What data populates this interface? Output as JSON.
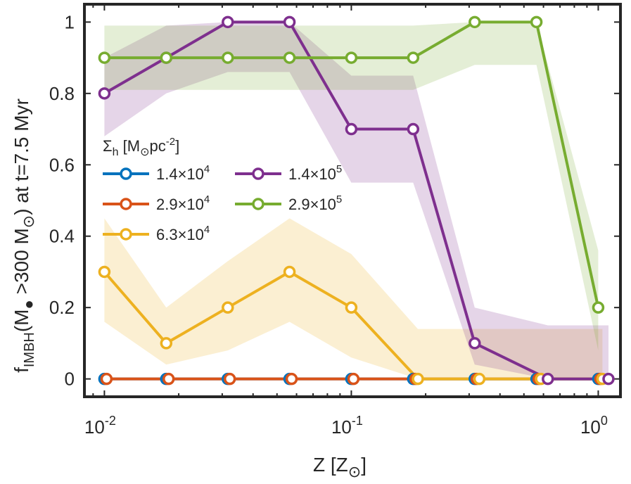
{
  "chart_data": {
    "type": "line",
    "xscale": "log",
    "xlim": [
      0.0083,
      1.23
    ],
    "ylim": [
      -0.05,
      1.05
    ],
    "ylabel": "f_IMBH(M● >300 M⊙) at t=7.5 Myr",
    "xlabel": "Z [Z⊙]",
    "xtick_labels": [
      {
        "value": 0.01,
        "base": "10",
        "exp": "-2"
      },
      {
        "value": 0.1,
        "base": "10",
        "exp": "-1"
      },
      {
        "value": 1,
        "base": "10",
        "exp": "0"
      }
    ],
    "ytick_labels": [
      {
        "value": 0,
        "label": "0"
      },
      {
        "value": 0.2,
        "label": "0.2"
      },
      {
        "value": 0.4,
        "label": "0.4"
      },
      {
        "value": 0.6,
        "label": "0.6"
      },
      {
        "value": 0.8,
        "label": "0.8"
      },
      {
        "value": 1,
        "label": "1"
      }
    ],
    "legend": {
      "title": "Σh [M⊙pc-2]",
      "title_parts": {
        "sigma": "Σ",
        "sub_h": "h",
        "open": " [M",
        "sun": "⊙",
        "pc": "pc",
        "sup": "-2",
        "close": "]"
      },
      "position": "center-left"
    },
    "series": [
      {
        "name": "1.4×10^4",
        "label_base": "1.4×10",
        "label_exp": "4",
        "color": "#0072BD",
        "x": [
          0.01,
          0.0178,
          0.0316,
          0.0562,
          0.1,
          0.178,
          0.316,
          0.562,
          1.0
        ],
        "y": [
          0,
          0,
          0,
          0,
          0,
          0,
          0,
          0,
          0
        ]
      },
      {
        "name": "2.9×10^4",
        "label_base": "2.9×10",
        "label_exp": "4",
        "color": "#D95319",
        "x": [
          0.0102,
          0.0182,
          0.0322,
          0.0573,
          0.102,
          0.182,
          0.322,
          0.573,
          1.02
        ],
        "y": [
          0,
          0,
          0,
          0,
          0,
          0,
          0,
          0,
          0
        ]
      },
      {
        "name": "6.3×10^4",
        "label_base": "6.3×10",
        "label_exp": "4",
        "color": "#EDB120",
        "fill": "#FBEBD1",
        "x": [
          0.01,
          0.0178,
          0.0316,
          0.0562,
          0.1,
          0.186,
          0.33,
          0.586,
          1.04
        ],
        "y": [
          0.3,
          0.1,
          0.2,
          0.3,
          0.2,
          0,
          0,
          0,
          0
        ],
        "lower": [
          0.16,
          0.04,
          0.08,
          0.16,
          0.06,
          0,
          0,
          0,
          0
        ],
        "upper": [
          0.45,
          0.2,
          0.33,
          0.45,
          0.35,
          0.14,
          0.14,
          0.14,
          0.14
        ]
      },
      {
        "name": "1.4×10^5",
        "label_base": "1.4×10",
        "label_exp": "5",
        "color": "#7E2F8E",
        "fill": "#E6DAE8",
        "x": [
          0.01,
          0.0178,
          0.0316,
          0.0562,
          0.1,
          0.178,
          0.316,
          0.625,
          1.1
        ],
        "y": [
          0.8,
          0.9,
          1,
          1,
          0.7,
          0.7,
          0.1,
          0,
          0
        ],
        "lower": [
          0.68,
          0.8,
          0.86,
          0.86,
          0.55,
          0.55,
          0.04,
          0,
          0
        ],
        "upper": [
          0.9,
          0.99,
          1,
          1,
          0.85,
          0.85,
          0.2,
          0.15,
          0.15
        ]
      },
      {
        "name": "2.9×10^5",
        "label_base": "2.9×10",
        "label_exp": "5",
        "color": "#77AC30",
        "fill": "#E4EFD9",
        "x": [
          0.01,
          0.0178,
          0.0316,
          0.0562,
          0.1,
          0.178,
          0.316,
          0.562,
          1.0
        ],
        "y": [
          0.9,
          0.9,
          0.9,
          0.9,
          0.9,
          0.9,
          1,
          1,
          0.2
        ],
        "lower": [
          0.81,
          0.81,
          0.81,
          0.81,
          0.81,
          0.81,
          0.88,
          0.88,
          0.08
        ],
        "upper": [
          0.99,
          0.99,
          0.99,
          0.99,
          0.99,
          0.99,
          1,
          1,
          0.36
        ]
      }
    ]
  }
}
